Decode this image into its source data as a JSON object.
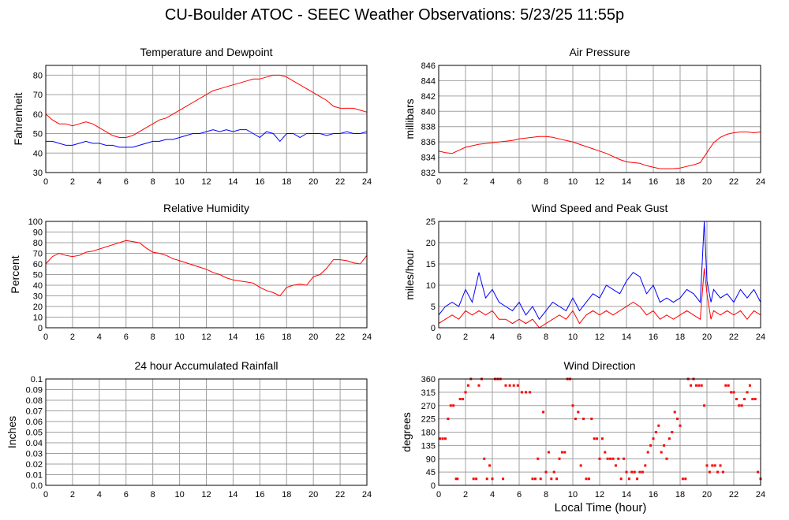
{
  "page": {
    "title": "CU-Boulder ATOC - SEEC Weather Observations: 5/23/25 11:55p",
    "xlabel": "Local Time (hour)"
  },
  "colors": {
    "red": "#ff0000",
    "blue": "#0000ff",
    "grid": "#a0a0a0",
    "frame": "#000000"
  },
  "chart_data": [
    {
      "type": "line",
      "title": "Temperature and Dewpoint",
      "ylabel": "Fahrenheit",
      "xlim": [
        0,
        24
      ],
      "xticks": [
        0,
        2,
        4,
        6,
        8,
        10,
        12,
        14,
        16,
        18,
        20,
        22,
        24
      ],
      "ylim": [
        30,
        85
      ],
      "yticks": [
        30,
        40,
        50,
        60,
        70,
        80
      ],
      "grid": true,
      "series": [
        {
          "color": "#ff0000",
          "x": [
            0,
            0.5,
            1,
            1.5,
            2,
            2.5,
            3,
            3.5,
            4,
            4.5,
            5,
            5.5,
            6,
            6.5,
            7,
            7.5,
            8,
            8.5,
            9,
            9.5,
            10,
            10.5,
            11,
            11.5,
            12,
            12.5,
            13,
            13.5,
            14,
            14.5,
            15,
            15.5,
            16,
            16.5,
            17,
            17.5,
            18,
            18.5,
            19,
            19.5,
            20,
            20.5,
            21,
            21.5,
            22,
            22.5,
            23,
            23.5,
            24
          ],
          "y": [
            60,
            57,
            55,
            55,
            54,
            55,
            56,
            55,
            53,
            51,
            49,
            48,
            48,
            49,
            51,
            53,
            55,
            57,
            58,
            60,
            62,
            64,
            66,
            68,
            70,
            72,
            73,
            74,
            75,
            76,
            77,
            78,
            78,
            79,
            80,
            80,
            79,
            77,
            75,
            73,
            71,
            69,
            67,
            64,
            63,
            63,
            63,
            62,
            61
          ]
        },
        {
          "color": "#0000ff",
          "x": [
            0,
            0.5,
            1,
            1.5,
            2,
            2.5,
            3,
            3.5,
            4,
            4.5,
            5,
            5.5,
            6,
            6.5,
            7,
            7.5,
            8,
            8.5,
            9,
            9.5,
            10,
            10.5,
            11,
            11.5,
            12,
            12.5,
            13,
            13.5,
            14,
            14.5,
            15,
            15.5,
            16,
            16.5,
            17,
            17.5,
            18,
            18.5,
            19,
            19.5,
            20,
            20.5,
            21,
            21.5,
            22,
            22.5,
            23,
            23.5,
            24
          ],
          "y": [
            46,
            46,
            45,
            44,
            44,
            45,
            46,
            45,
            45,
            44,
            44,
            43,
            43,
            43,
            44,
            45,
            46,
            46,
            47,
            47,
            48,
            49,
            50,
            50,
            51,
            52,
            51,
            52,
            51,
            52,
            52,
            50,
            48,
            51,
            50,
            46,
            50,
            50,
            48,
            50,
            50,
            50,
            49,
            50,
            50,
            51,
            50,
            50,
            51
          ]
        }
      ]
    },
    {
      "type": "line",
      "title": "Air Pressure",
      "ylabel": "millibars",
      "xlim": [
        0,
        24
      ],
      "xticks": [
        0,
        2,
        4,
        6,
        8,
        10,
        12,
        14,
        16,
        18,
        20,
        22,
        24
      ],
      "ylim": [
        832,
        846
      ],
      "yticks": [
        832,
        834,
        836,
        838,
        840,
        842,
        844,
        846
      ],
      "grid": true,
      "series": [
        {
          "color": "#ff0000",
          "x": [
            0,
            0.5,
            1,
            1.5,
            2,
            2.5,
            3,
            3.5,
            4,
            4.5,
            5,
            5.5,
            6,
            6.5,
            7,
            7.5,
            8,
            8.5,
            9,
            9.5,
            10,
            10.5,
            11,
            11.5,
            12,
            12.5,
            13,
            13.5,
            14,
            14.5,
            15,
            15.5,
            16,
            16.5,
            17,
            17.5,
            18,
            18.5,
            19,
            19.5,
            20,
            20.5,
            21,
            21.5,
            22,
            22.5,
            23,
            23.5,
            24
          ],
          "y": [
            834.8,
            834.6,
            834.5,
            834.9,
            835.3,
            835.5,
            835.7,
            835.8,
            835.9,
            836.0,
            836.1,
            836.2,
            836.4,
            836.5,
            836.6,
            836.7,
            836.7,
            836.6,
            836.4,
            836.2,
            836.0,
            835.7,
            835.4,
            835.1,
            834.8,
            834.5,
            834.1,
            833.7,
            833.4,
            833.3,
            833.2,
            832.9,
            832.7,
            832.5,
            832.5,
            832.5,
            832.6,
            832.8,
            833.0,
            833.3,
            834.6,
            835.9,
            836.6,
            837.0,
            837.2,
            837.3,
            837.3,
            837.2,
            837.3
          ]
        }
      ]
    },
    {
      "type": "line",
      "title": "Relative Humidity",
      "ylabel": "Percent",
      "xlim": [
        0,
        24
      ],
      "xticks": [
        0,
        2,
        4,
        6,
        8,
        10,
        12,
        14,
        16,
        18,
        20,
        22,
        24
      ],
      "ylim": [
        0,
        100
      ],
      "yticks": [
        0,
        10,
        20,
        30,
        40,
        50,
        60,
        70,
        80,
        90,
        100
      ],
      "grid": true,
      "series": [
        {
          "color": "#ff0000",
          "x": [
            0,
            0.5,
            1,
            1.5,
            2,
            2.5,
            3,
            3.5,
            4,
            4.5,
            5,
            5.5,
            6,
            6.5,
            7,
            7.5,
            8,
            8.5,
            9,
            9.5,
            10,
            10.5,
            11,
            11.5,
            12,
            12.5,
            13,
            13.5,
            14,
            14.5,
            15,
            15.5,
            16,
            16.5,
            17,
            17.5,
            18,
            18.5,
            19,
            19.5,
            20,
            20.5,
            21,
            21.5,
            22,
            22.5,
            23,
            23.5,
            24
          ],
          "y": [
            60,
            67,
            70,
            68,
            67,
            68,
            71,
            72,
            74,
            76,
            78,
            80,
            82,
            81,
            80,
            75,
            71,
            70,
            68,
            65,
            63,
            61,
            59,
            57,
            55,
            52,
            50,
            47,
            45,
            44,
            43,
            42,
            38,
            35,
            33,
            30,
            38,
            40,
            41,
            40,
            48,
            50,
            56,
            64,
            64,
            63,
            61,
            60,
            68
          ]
        }
      ]
    },
    {
      "type": "line",
      "title": "Wind Speed and Peak Gust",
      "ylabel": "miles/hour",
      "xlim": [
        0,
        24
      ],
      "xticks": [
        0,
        2,
        4,
        6,
        8,
        10,
        12,
        14,
        16,
        18,
        20,
        22,
        24
      ],
      "ylim": [
        0,
        25
      ],
      "yticks": [
        0,
        5,
        10,
        15,
        20,
        25
      ],
      "grid": true,
      "series": [
        {
          "color": "#0000ff",
          "x": [
            0,
            0.5,
            1,
            1.5,
            2,
            2.5,
            3,
            3.5,
            4,
            4.5,
            5,
            5.5,
            6,
            6.5,
            7,
            7.5,
            8,
            8.5,
            9,
            9.5,
            10,
            10.5,
            11,
            11.5,
            12,
            12.5,
            13,
            13.5,
            14,
            14.5,
            15,
            15.5,
            16,
            16.5,
            17,
            17.5,
            18,
            18.5,
            19,
            19.5,
            19.8,
            20,
            20.3,
            20.5,
            21,
            21.5,
            22,
            22.5,
            23,
            23.5,
            24
          ],
          "y": [
            3,
            5,
            6,
            5,
            9,
            6,
            13,
            7,
            9,
            6,
            5,
            4,
            6,
            3,
            5,
            2,
            4,
            6,
            5,
            4,
            7,
            4,
            6,
            8,
            7,
            10,
            9,
            8,
            11,
            13,
            12,
            8,
            10,
            6,
            7,
            6,
            7,
            9,
            8,
            6,
            25,
            11,
            6,
            9,
            7,
            8,
            6,
            9,
            7,
            9,
            6
          ]
        },
        {
          "color": "#ff0000",
          "x": [
            0,
            0.5,
            1,
            1.5,
            2,
            2.5,
            3,
            3.5,
            4,
            4.5,
            5,
            5.5,
            6,
            6.5,
            7,
            7.5,
            8,
            8.5,
            9,
            9.5,
            10,
            10.5,
            11,
            11.5,
            12,
            12.5,
            13,
            13.5,
            14,
            14.5,
            15,
            15.5,
            16,
            16.5,
            17,
            17.5,
            18,
            18.5,
            19,
            19.5,
            19.8,
            20,
            20.3,
            20.5,
            21,
            21.5,
            22,
            22.5,
            23,
            23.5,
            24
          ],
          "y": [
            1,
            2,
            3,
            2,
            4,
            3,
            4,
            3,
            4,
            2,
            2,
            1,
            2,
            1,
            2,
            0,
            1,
            2,
            3,
            2,
            4,
            1,
            3,
            4,
            3,
            4,
            3,
            4,
            5,
            6,
            5,
            3,
            4,
            2,
            3,
            2,
            3,
            4,
            3,
            2,
            14,
            8,
            2,
            4,
            3,
            4,
            3,
            4,
            2,
            4,
            3
          ]
        }
      ]
    },
    {
      "type": "line",
      "title": "24 hour Accumulated Rainfall",
      "ylabel": "Inches",
      "xlim": [
        0,
        24
      ],
      "xticks": [
        0,
        2,
        4,
        6,
        8,
        10,
        12,
        14,
        16,
        18,
        20,
        22,
        24
      ],
      "ylim": [
        0,
        0.1
      ],
      "yticks": [
        "0.0",
        "0.01",
        "0.02",
        "0.03",
        "0.04",
        "0.05",
        "0.06",
        "0.07",
        "0.08",
        "0.09",
        "0.1"
      ],
      "grid": true,
      "series": [
        {
          "color": "#ff0000",
          "x": [
            0,
            24
          ],
          "y": [
            0,
            0
          ]
        }
      ]
    },
    {
      "type": "scatter",
      "title": "Wind Direction",
      "ylabel": "degrees",
      "xlim": [
        0,
        24
      ],
      "xticks": [
        0,
        2,
        4,
        6,
        8,
        10,
        12,
        14,
        16,
        18,
        20,
        22,
        24
      ],
      "ylim": [
        0,
        360
      ],
      "yticks": [
        0,
        45,
        90,
        135,
        180,
        225,
        270,
        315,
        360
      ],
      "grid": true,
      "series": [
        {
          "color": "#ff0000",
          "x": [
            0.1,
            0.3,
            0.5,
            0.7,
            0.9,
            1.1,
            1.3,
            1.4,
            1.6,
            1.8,
            2.0,
            2.2,
            2.4,
            2.6,
            2.8,
            3.0,
            3.2,
            3.4,
            3.6,
            3.8,
            4.0,
            4.2,
            4.4,
            4.6,
            4.8,
            5.0,
            5.3,
            5.6,
            5.9,
            6.2,
            6.5,
            6.8,
            7.0,
            7.2,
            7.4,
            7.6,
            7.8,
            8.0,
            8.2,
            8.4,
            8.6,
            8.8,
            9.0,
            9.2,
            9.4,
            9.6,
            9.8,
            10.0,
            10.2,
            10.4,
            10.6,
            10.8,
            11.0,
            11.2,
            11.4,
            11.6,
            11.8,
            12.0,
            12.2,
            12.4,
            12.6,
            12.8,
            13.0,
            13.2,
            13.4,
            13.6,
            13.8,
            14.0,
            14.2,
            14.4,
            14.6,
            14.8,
            15.0,
            15.2,
            15.4,
            15.6,
            15.8,
            16.0,
            16.2,
            16.4,
            16.6,
            16.8,
            17.0,
            17.2,
            17.4,
            17.6,
            17.8,
            18.0,
            18.2,
            18.4,
            18.6,
            18.8,
            19.0,
            19.2,
            19.4,
            19.6,
            19.8,
            20.0,
            20.2,
            20.4,
            20.6,
            20.8,
            21.0,
            21.2,
            21.4,
            21.6,
            21.8,
            22.0,
            22.2,
            22.4,
            22.6,
            22.8,
            23.0,
            23.2,
            23.4,
            23.6,
            23.8,
            24.0
          ],
          "y": [
            158,
            158,
            158,
            225,
            270,
            270,
            22,
            22,
            292,
            292,
            315,
            338,
            360,
            22,
            22,
            338,
            360,
            90,
            22,
            67,
            22,
            360,
            360,
            360,
            22,
            338,
            338,
            338,
            338,
            315,
            315,
            315,
            22,
            22,
            90,
            22,
            248,
            45,
            112,
            22,
            45,
            22,
            90,
            112,
            112,
            360,
            360,
            270,
            225,
            248,
            67,
            225,
            22,
            22,
            225,
            158,
            158,
            90,
            158,
            112,
            90,
            90,
            90,
            67,
            90,
            22,
            90,
            45,
            22,
            45,
            45,
            22,
            45,
            45,
            67,
            112,
            135,
            158,
            180,
            202,
            112,
            135,
            90,
            158,
            180,
            248,
            225,
            202,
            22,
            22,
            360,
            338,
            360,
            338,
            338,
            338,
            270,
            67,
            45,
            67,
            67,
            45,
            67,
            45,
            338,
            338,
            315,
            315,
            292,
            270,
            270,
            292,
            315,
            338,
            292,
            292,
            45,
            22
          ]
        }
      ]
    }
  ]
}
